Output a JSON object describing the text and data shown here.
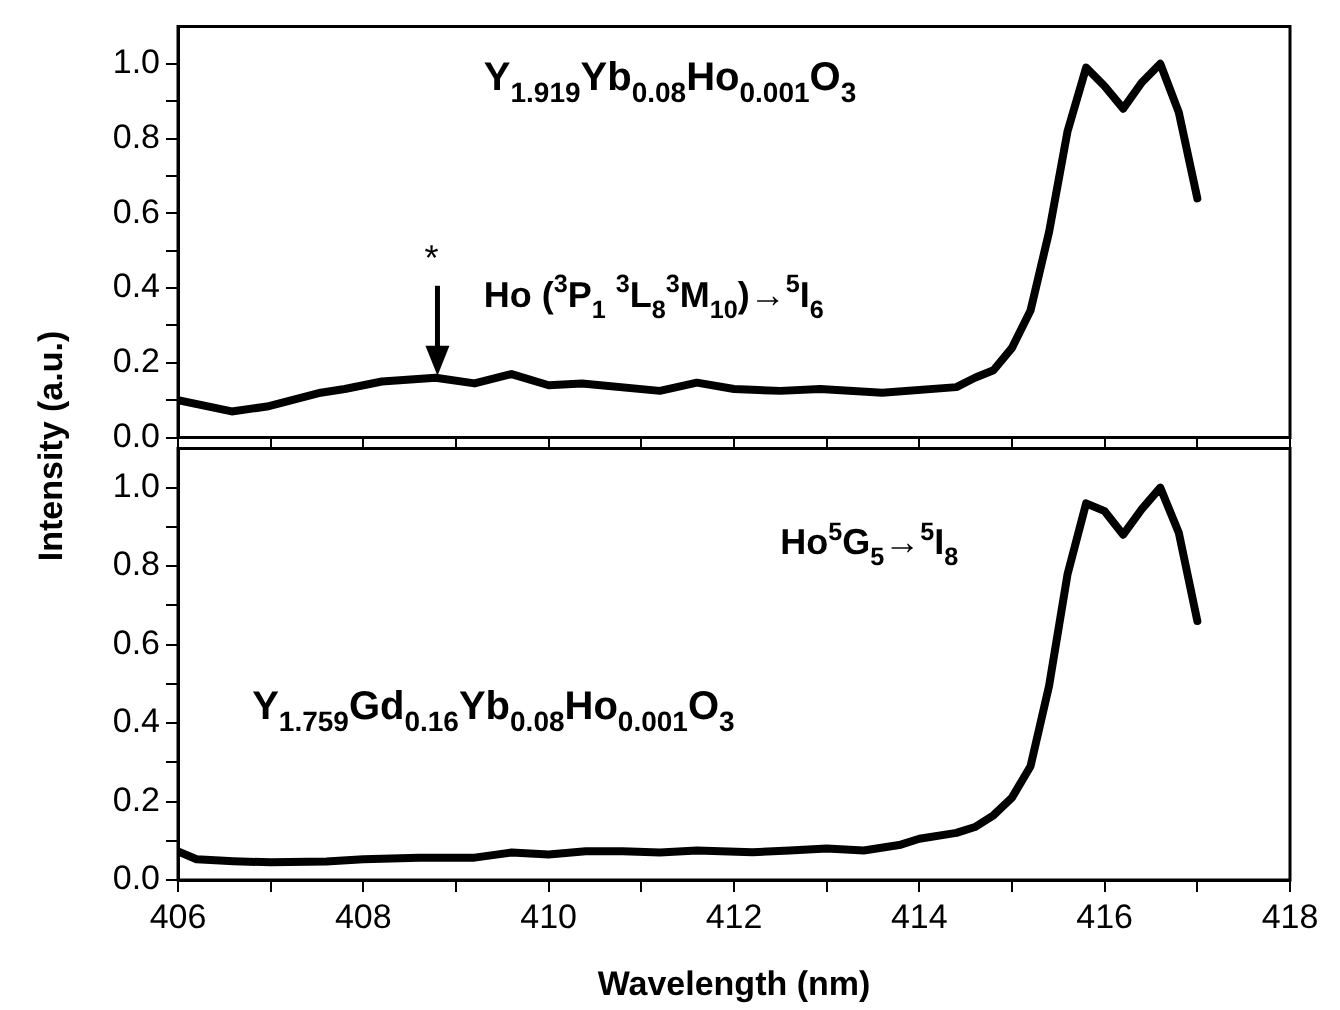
{
  "chart_data": [
    {
      "type": "line",
      "ylabel": "Intensity (a.u.)",
      "xlim": [
        406,
        418
      ],
      "ylim": [
        0,
        1.1
      ],
      "tick_labels": "y",
      "grid": false,
      "legend": false,
      "marker": "none",
      "line_style": "solid",
      "xticks": [
        406,
        {
          "value": 407,
          "label": null
        },
        408,
        {
          "value": 409,
          "label": null
        },
        410,
        {
          "value": 411,
          "label": null
        },
        412,
        {
          "value": 413,
          "label": null
        },
        414,
        {
          "value": 415,
          "label": null
        },
        416,
        {
          "value": 417,
          "label": null
        },
        418
      ],
      "yticks": [
        {
          "value": 0,
          "label": "0.0"
        },
        {
          "value": 0.1,
          "label": null
        },
        0.2,
        {
          "value": 0.3,
          "label": null
        },
        0.4,
        {
          "value": 0.5,
          "label": null
        },
        0.6,
        {
          "value": 0.7,
          "label": null
        },
        0.8,
        {
          "value": 0.9,
          "label": null
        },
        {
          "value": 1,
          "label": "1.0"
        }
      ],
      "annotations": [
        {
          "text": "*",
          "x": 408.8,
          "y": 0.16
        },
        "Ho ($^{3}$P$_{1}$ $^{3}$L$_{8}$$^{3}$M$_{10}$)→$^{5}$I$_{6}$"
      ],
      "series": [
        {
          "name": "Y$_{1.919}$Yb$_{0.08}$Ho$_{0.001}$O$_{3}$",
          "color": "#000000",
          "x": [
            406,
            406.58,
            406.96,
            407.54,
            407.8,
            408.2,
            408.78,
            409.2,
            409.6,
            410,
            410.36,
            411.2,
            411.6,
            412,
            412.5,
            412.93,
            413.6,
            414.4,
            414.6,
            414.8,
            415,
            415.2,
            415.4,
            415.6,
            415.8,
            416,
            416.2,
            416.4,
            416.6,
            416.8,
            417
          ],
          "values": [
            0.1,
            0.07,
            0.083,
            0.12,
            0.13,
            0.15,
            0.16,
            0.145,
            0.17,
            0.14,
            0.145,
            0.125,
            0.147,
            0.13,
            0.125,
            0.13,
            0.12,
            0.135,
            0.16,
            0.18,
            0.24,
            0.34,
            0.55,
            0.82,
            0.99,
            0.94,
            0.88,
            0.95,
            1.0,
            0.87,
            0.64
          ]
        }
      ]
    },
    {
      "type": "line",
      "xlabel": "Wavelength (nm)",
      "xlim": [
        406,
        418
      ],
      "ylim": [
        0,
        1.1
      ],
      "grid": false,
      "legend": false,
      "marker": "none",
      "line_style": "solid",
      "xticks": [
        406,
        {
          "value": 407,
          "label": null
        },
        408,
        {
          "value": 409,
          "label": null
        },
        410,
        {
          "value": 411,
          "label": null
        },
        412,
        {
          "value": 413,
          "label": null
        },
        414,
        {
          "value": 415,
          "label": null
        },
        416,
        {
          "value": 417,
          "label": null
        },
        418
      ],
      "yticks": [
        {
          "value": 0,
          "label": "0.0"
        },
        {
          "value": 0.1,
          "label": null
        },
        0.2,
        {
          "value": 0.3,
          "label": null
        },
        0.4,
        {
          "value": 0.5,
          "label": null
        },
        0.6,
        {
          "value": 0.7,
          "label": null
        },
        0.8,
        {
          "value": 0.9,
          "label": null
        },
        {
          "value": 1,
          "label": "1.0"
        }
      ],
      "annotations": [
        "Ho$^{5}$G$_{5}$→$^{5}$I$_{8}$"
      ],
      "series": [
        {
          "name": "Y$_{1.759}$Gd$_{0.16}$Yb$_{0.08}$Ho$_{0.001}$O$_{3}$",
          "color": "#000000",
          "x": [
            406,
            406.2,
            406.6,
            407,
            407.6,
            408,
            408.6,
            409.2,
            409.6,
            410,
            410.4,
            410.8,
            411.2,
            411.6,
            412.2,
            412.6,
            413,
            413.4,
            413.8,
            414,
            414.4,
            414.6,
            414.8,
            415,
            415.2,
            415.4,
            415.6,
            415.8,
            416,
            416.2,
            416.4,
            416.6,
            416.8,
            417
          ],
          "values": [
            0.073,
            0.053,
            0.048,
            0.045,
            0.047,
            0.053,
            0.057,
            0.057,
            0.07,
            0.065,
            0.073,
            0.073,
            0.07,
            0.075,
            0.071,
            0.075,
            0.08,
            0.075,
            0.09,
            0.105,
            0.12,
            0.135,
            0.165,
            0.21,
            0.29,
            0.495,
            0.78,
            0.96,
            0.94,
            0.88,
            0.945,
            1.0,
            0.885,
            0.66
          ]
        }
      ]
    }
  ]
}
